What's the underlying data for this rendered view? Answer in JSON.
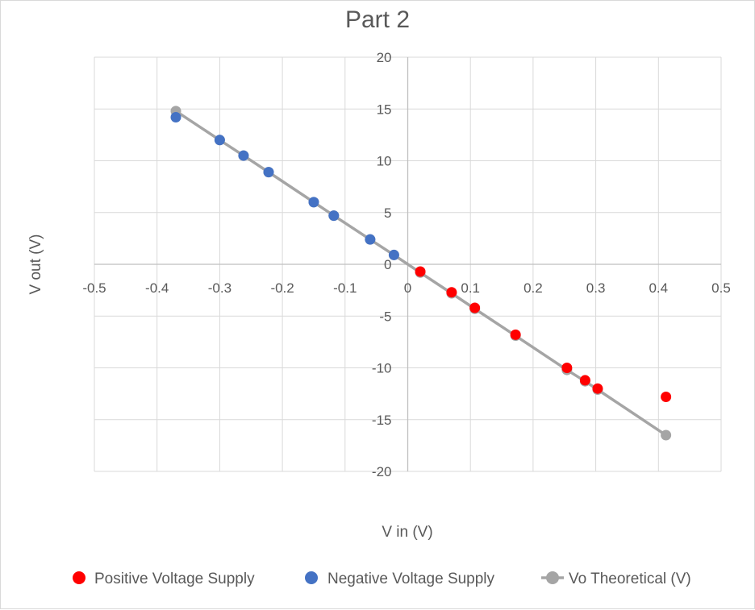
{
  "chart_data": {
    "type": "scatter",
    "title": "Part 2",
    "xlabel": "V in (V)",
    "ylabel": "V out (V)",
    "xlim": [
      -0.5,
      0.5
    ],
    "ylim": [
      -20,
      20
    ],
    "x_ticks": [
      -0.5,
      -0.4,
      -0.3,
      -0.2,
      -0.1,
      0,
      0.1,
      0.2,
      0.3,
      0.4,
      0.5
    ],
    "x_tick_labels": [
      "-0.5",
      "-0.4",
      "-0.3",
      "-0.2",
      "-0.1",
      "0",
      "0.1",
      "0.2",
      "0.3",
      "0.4",
      "0.5"
    ],
    "y_ticks": [
      -20,
      -15,
      -10,
      -5,
      0,
      5,
      10,
      15,
      20
    ],
    "y_tick_labels": [
      "-20",
      "-15",
      "-10",
      "-5",
      "0",
      "5",
      "10",
      "15",
      "20"
    ],
    "grid": true,
    "legend_position": "bottom",
    "series": [
      {
        "name": "Positive Voltage Supply",
        "color": "#ff0000",
        "marker": "circle",
        "line": false,
        "points": [
          {
            "x": 0.02,
            "y": -0.7
          },
          {
            "x": 0.07,
            "y": -2.7
          },
          {
            "x": 0.107,
            "y": -4.2
          },
          {
            "x": 0.172,
            "y": -6.8
          },
          {
            "x": 0.254,
            "y": -10.0
          },
          {
            "x": 0.283,
            "y": -11.2
          },
          {
            "x": 0.303,
            "y": -12.0
          },
          {
            "x": 0.412,
            "y": -12.8
          }
        ]
      },
      {
        "name": "Negative Voltage Supply",
        "color": "#4472c4",
        "marker": "circle",
        "line": false,
        "points": [
          {
            "x": -0.37,
            "y": 14.2
          },
          {
            "x": -0.3,
            "y": 12.0
          },
          {
            "x": -0.262,
            "y": 10.5
          },
          {
            "x": -0.222,
            "y": 8.9
          },
          {
            "x": -0.15,
            "y": 6.0
          },
          {
            "x": -0.118,
            "y": 4.7
          },
          {
            "x": -0.06,
            "y": 2.4
          },
          {
            "x": -0.022,
            "y": 0.9
          }
        ]
      },
      {
        "name": "Vo Theoretical (V)",
        "color": "#a5a5a5",
        "marker": "circle",
        "line": true,
        "points": [
          {
            "x": -0.37,
            "y": 14.8
          },
          {
            "x": -0.3,
            "y": 12.0
          },
          {
            "x": -0.262,
            "y": 10.5
          },
          {
            "x": -0.222,
            "y": 8.9
          },
          {
            "x": -0.15,
            "y": 6.0
          },
          {
            "x": -0.118,
            "y": 4.7
          },
          {
            "x": -0.06,
            "y": 2.4
          },
          {
            "x": -0.022,
            "y": 0.9
          },
          {
            "x": 0.02,
            "y": -0.8
          },
          {
            "x": 0.07,
            "y": -2.8
          },
          {
            "x": 0.107,
            "y": -4.3
          },
          {
            "x": 0.172,
            "y": -6.9
          },
          {
            "x": 0.254,
            "y": -10.2
          },
          {
            "x": 0.283,
            "y": -11.3
          },
          {
            "x": 0.303,
            "y": -12.1
          },
          {
            "x": 0.412,
            "y": -16.5
          }
        ]
      }
    ]
  }
}
